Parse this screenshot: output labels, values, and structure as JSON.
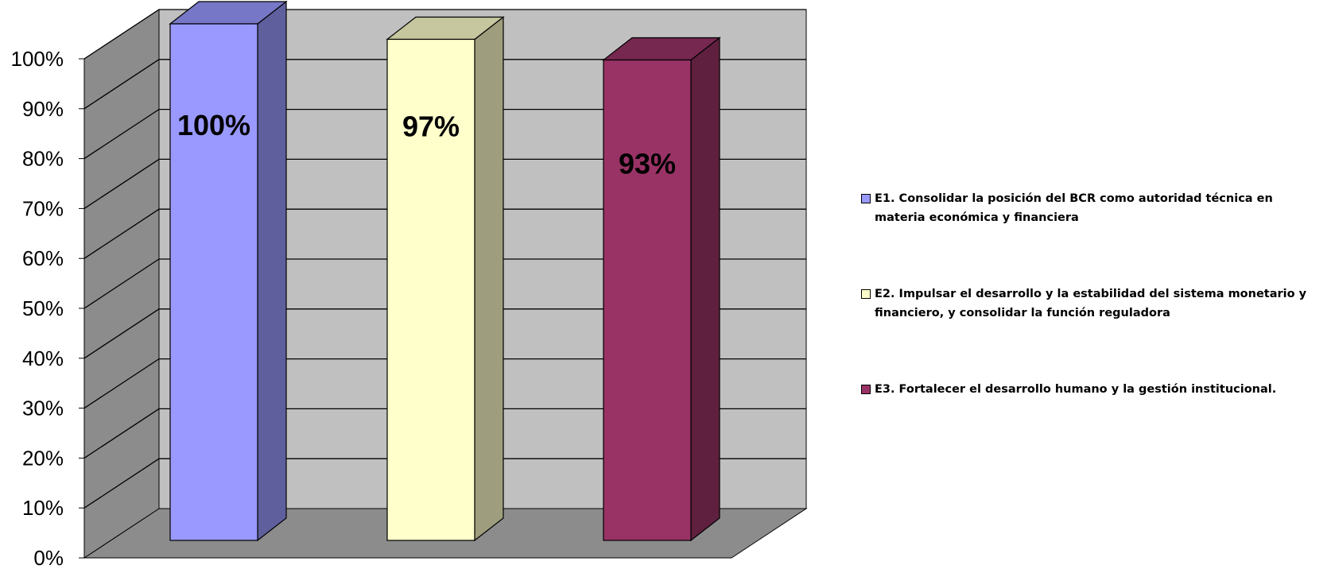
{
  "chart_data": {
    "type": "bar",
    "three_d": true,
    "categories": [
      "E1. Consolidar la posición del BCR como autoridad técnica en materia económica y financiera",
      "E2. Impulsar el desarrollo y la estabilidad del sistema monetario y financiero, y consolidar la función reguladora",
      "E3. Fortalecer el desarrollo humano y la gestión institucional."
    ],
    "values": [
      100,
      97,
      93
    ],
    "data_labels": [
      "100%",
      "97%",
      "93%"
    ],
    "colors": [
      "#9999FF",
      "#FFFFCC",
      "#993366"
    ],
    "y_ticks": [
      "0%",
      "10%",
      "20%",
      "30%",
      "40%",
      "50%",
      "60%",
      "70%",
      "80%",
      "90%",
      "100%"
    ],
    "ylim": [
      0,
      100
    ],
    "grid": true,
    "legend_position": "right",
    "title": "",
    "xlabel": "",
    "ylabel": ""
  },
  "legend": {
    "items": [
      {
        "label": "E1. Consolidar la posición del BCR como autoridad técnica en materia económica y financiera",
        "color": "#9999FF"
      },
      {
        "label": "E2. Impulsar el desarrollo y la estabilidad del sistema monetario y financiero, y consolidar la función reguladora",
        "color": "#FFFFCC"
      },
      {
        "label": "E3. Fortalecer el desarrollo humano y la gestión institucional.",
        "color": "#993366"
      }
    ]
  }
}
